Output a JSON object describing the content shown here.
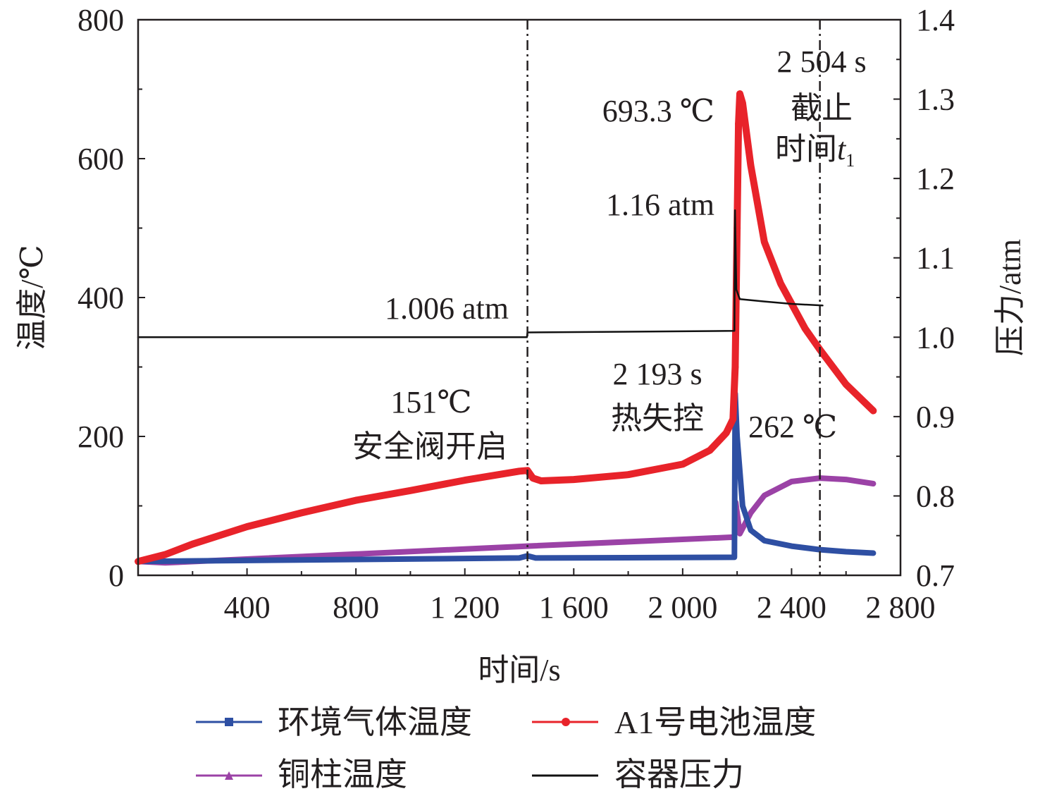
{
  "chart_data": {
    "type": "line",
    "xlabel": "时间/s",
    "ylabel": "温度/℃",
    "y2label": "压力/atm",
    "xlim": [
      0,
      2800
    ],
    "ylim": [
      0,
      800
    ],
    "y2lim": [
      0.7,
      1.4
    ],
    "x_ticks": [
      400,
      800,
      1200,
      1600,
      2000,
      2400,
      2800
    ],
    "x_tick_labels": [
      "400",
      "800",
      "1 200",
      "1 600",
      "2 000",
      "2 400",
      "2 800"
    ],
    "y_ticks": [
      0,
      200,
      400,
      600,
      800
    ],
    "y_tick_labels": [
      "0",
      "200",
      "400",
      "600",
      "800"
    ],
    "y2_ticks": [
      0.7,
      0.8,
      0.9,
      1.0,
      1.1,
      1.2,
      1.3,
      1.4
    ],
    "y2_tick_labels": [
      "0.7",
      "0.8",
      "0.9",
      "1.0",
      "1.1",
      "1.2",
      "1.3",
      "1.4"
    ],
    "grid": false,
    "legend_position": "bottom",
    "vertical_lines": [
      1430,
      2504
    ],
    "series": [
      {
        "name": "环境气体温度",
        "axis": "left",
        "color": "#2e4fa3",
        "marker": "square",
        "x": [
          0,
          1400,
          1430,
          1460,
          2190,
          2193,
          2200,
          2220,
          2250,
          2300,
          2400,
          2504,
          2600,
          2700
        ],
        "y": [
          20,
          25,
          28,
          25,
          26,
          262,
          200,
          100,
          65,
          50,
          42,
          37,
          34,
          32
        ]
      },
      {
        "name": "A1号电池温度",
        "axis": "left",
        "color": "#e8232a",
        "marker": "circle",
        "x": [
          0,
          100,
          200,
          400,
          600,
          800,
          1000,
          1200,
          1400,
          1430,
          1450,
          1480,
          1600,
          1800,
          2000,
          2100,
          2160,
          2185,
          2193,
          2200,
          2205,
          2210,
          2220,
          2250,
          2300,
          2360,
          2450,
          2504,
          2600,
          2700
        ],
        "y": [
          20,
          30,
          45,
          70,
          90,
          108,
          122,
          137,
          150,
          151,
          140,
          136,
          138,
          145,
          160,
          180,
          205,
          225,
          300,
          500,
          650,
          693.3,
          680,
          590,
          480,
          420,
          355,
          325,
          275,
          237
        ]
      },
      {
        "name": "铜柱温度",
        "axis": "left",
        "color": "#9b42a6",
        "marker": "triangle",
        "x": [
          0,
          100,
          1430,
          2190,
          2195,
          2200,
          2210,
          2250,
          2300,
          2400,
          2504,
          2600,
          2700
        ],
        "y": [
          20,
          18,
          42,
          55,
          105,
          90,
          60,
          90,
          115,
          135,
          140,
          138,
          132
        ]
      },
      {
        "name": "容器压力",
        "axis": "right",
        "color": "#111111",
        "marker": "none",
        "x": [
          0,
          1428,
          1430,
          2190,
          2192,
          2197,
          2210,
          2300,
          2400,
          2514
        ],
        "y": [
          1.0,
          1.0,
          1.006,
          1.008,
          1.16,
          1.06,
          1.048,
          1.045,
          1.042,
          1.04
        ]
      }
    ],
    "annotations": {
      "peak_temp": "693.3 ℃",
      "peak_pressure": "1.16 atm",
      "valve_pressure": "1.006 atm",
      "valve_temp": "151℃",
      "valve_label": "安全阀开启",
      "runaway_time": "2 193 s",
      "runaway_label": "热失控",
      "ambient_peak": "262 ℃",
      "cutoff_time": "2 504 s",
      "cutoff_label": "截止",
      "cutoff_time_label": "时间",
      "cutoff_symbol": "t",
      "cutoff_subscript": "1"
    }
  }
}
